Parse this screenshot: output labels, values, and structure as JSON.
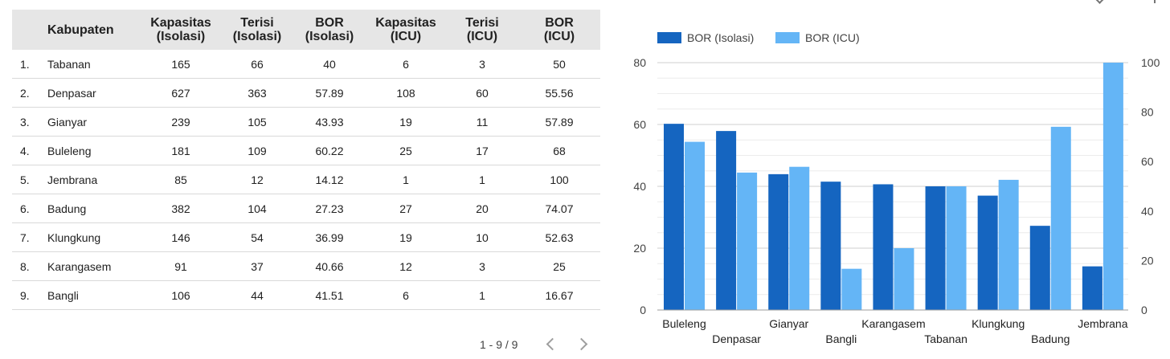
{
  "table": {
    "headers": [
      {
        "line1": "",
        "line2": ""
      },
      {
        "line1": "Kabupaten",
        "line2": ""
      },
      {
        "line1": "Kapasitas",
        "line2": "(Isolasi)"
      },
      {
        "line1": "Terisi",
        "line2": "(Isolasi)"
      },
      {
        "line1": "BOR",
        "line2": "(Isolasi)"
      },
      {
        "line1": "Kapasitas",
        "line2": "(ICU)"
      },
      {
        "line1": "Terisi",
        "line2": "(ICU)"
      },
      {
        "line1": "BOR",
        "line2": "(ICU)"
      }
    ],
    "rows": [
      [
        "1.",
        "Tabanan",
        "165",
        "66",
        "40",
        "6",
        "3",
        "50"
      ],
      [
        "2.",
        "Denpasar",
        "627",
        "363",
        "57.89",
        "108",
        "60",
        "55.56"
      ],
      [
        "3.",
        "Gianyar",
        "239",
        "105",
        "43.93",
        "19",
        "11",
        "57.89"
      ],
      [
        "4.",
        "Buleleng",
        "181",
        "109",
        "60.22",
        "25",
        "17",
        "68"
      ],
      [
        "5.",
        "Jembrana",
        "85",
        "12",
        "14.12",
        "1",
        "1",
        "100"
      ],
      [
        "6.",
        "Badung",
        "382",
        "104",
        "27.23",
        "27",
        "20",
        "74.07"
      ],
      [
        "7.",
        "Klungkung",
        "146",
        "54",
        "36.99",
        "19",
        "10",
        "52.63"
      ],
      [
        "8.",
        "Karangasem",
        "91",
        "37",
        "40.66",
        "12",
        "3",
        "25"
      ],
      [
        "9.",
        "Bangli",
        "106",
        "44",
        "41.51",
        "6",
        "1",
        "16.67"
      ]
    ]
  },
  "pagination": {
    "label": "1 - 9 / 9"
  },
  "chart_data": {
    "type": "bar",
    "categories": [
      "Buleleng",
      "Denpasar",
      "Gianyar",
      "Bangli",
      "Karangasem",
      "Tabanan",
      "Klungkung",
      "Badung",
      "Jembrana"
    ],
    "series": [
      {
        "name": "BOR (Isolasi)",
        "axis": "left",
        "color": "#1565c0",
        "values": [
          60.22,
          57.89,
          43.93,
          41.51,
          40.66,
          40,
          36.99,
          27.23,
          14.12
        ]
      },
      {
        "name": "BOR (ICU)",
        "axis": "right",
        "color": "#64b5f6",
        "values": [
          68,
          55.56,
          57.89,
          16.67,
          25,
          50,
          52.63,
          74.07,
          100
        ]
      }
    ],
    "y_left": {
      "range": [
        0,
        80
      ],
      "ticks": [
        "0",
        "20",
        "40",
        "60",
        "80"
      ]
    },
    "y_right": {
      "range": [
        0,
        100
      ],
      "ticks": [
        "0",
        "20",
        "40",
        "60",
        "80",
        "100"
      ]
    },
    "grid": true,
    "legend_position": "top-left"
  }
}
